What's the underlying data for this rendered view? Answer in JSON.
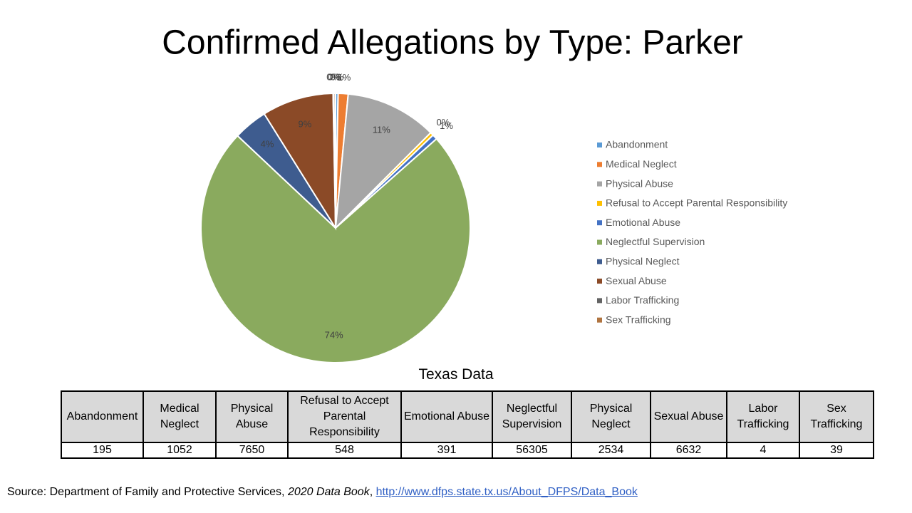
{
  "chart_data": {
    "type": "pie",
    "title": "Confirmed Allegations by Type: Parker",
    "categories": [
      "Abandonment",
      "Medical Neglect",
      "Physical Abuse",
      "Refusal to Accept Parental Responsibility",
      "Emotional Abuse",
      "Neglectful Supervision",
      "Physical Neglect",
      "Sexual Abuse",
      "Labor Trafficking",
      "Sex Trafficking"
    ],
    "values": [
      0.3,
      1.2,
      11.0,
      0.4,
      0.6,
      73.6,
      4.1,
      8.6,
      0.1,
      0.2
    ],
    "value_labels": [
      "0%",
      "1%",
      "11%",
      "0%",
      "1%",
      "74%",
      "4%",
      "9%",
      "0%",
      "0%"
    ],
    "colors": [
      "#5b9bd5",
      "#ed7d31",
      "#a5a5a5",
      "#ffc000",
      "#4472c4",
      "#8aaa5e",
      "#3e5c8f",
      "#8b4a27",
      "#636363",
      "#b07440"
    ],
    "legend": "right"
  },
  "table": {
    "title": "Texas Data",
    "header": [
      "Abandonment",
      "Medical Neglect",
      "Physical Abuse",
      "Refusal to Accept Parental Responsibility",
      "Emotional Abuse",
      "Neglectful Supervision",
      "Physical Neglect",
      "Sexual Abuse",
      "Labor Trafficking",
      "Sex Trafficking"
    ],
    "rows": [
      [
        195,
        1052,
        7650,
        548,
        391,
        56305,
        2534,
        6632,
        4,
        39
      ]
    ]
  },
  "source": [
    "Source: Department of Family and Protective Services, ",
    "2020 Data Book",
    ", ",
    "http://www.dfps.state.tx.us/About_DFPS/Data_Book"
  ]
}
